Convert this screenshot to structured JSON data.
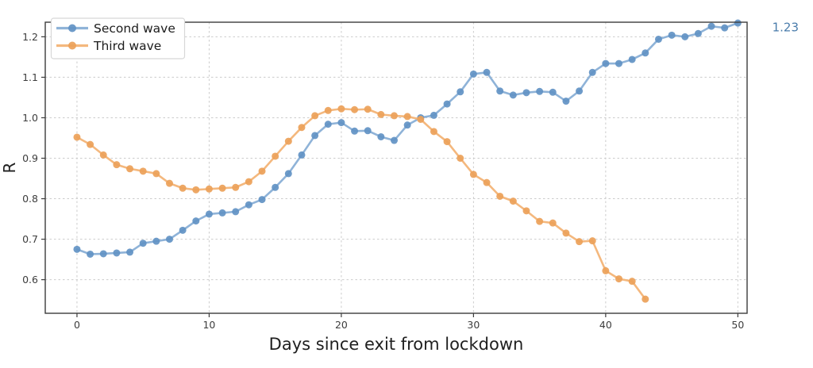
{
  "chart_data": {
    "type": "line",
    "title": "",
    "xlabel": "Days since exit from lockdown",
    "ylabel": "R",
    "grid": true,
    "grid_color": "#cccccc",
    "spine_color": "#3c3c3c",
    "tick_label_color": "#3d3d3d",
    "axis_label_color": "#1f1f1f",
    "legend_position": "upper-left",
    "xlim": [
      -2.4,
      50.7
    ],
    "ylim": [
      0.517,
      1.236
    ],
    "x_ticks": [
      0,
      10,
      20,
      30,
      40,
      50
    ],
    "x_tick_labels": [
      "0",
      "10",
      "20",
      "30",
      "40",
      "50"
    ],
    "y_ticks": [
      0.6,
      0.7,
      0.8,
      0.9,
      1.0,
      1.1,
      1.2
    ],
    "y_tick_labels": [
      "0.6",
      "0.7",
      "0.8",
      "0.9",
      "1.0",
      "1.1",
      "1.2"
    ],
    "annotation": {
      "text": "1.23",
      "x": 52.6,
      "y": 1.223,
      "color": "#4a7cab"
    },
    "series": [
      {
        "name": "Second wave",
        "line_color": "#8fb3d8",
        "marker_color": "#6293c4",
        "x": [
          0,
          1,
          2,
          3,
          4,
          5,
          6,
          7,
          8,
          9,
          10,
          11,
          12,
          13,
          14,
          15,
          16,
          17,
          18,
          19,
          20,
          21,
          22,
          23,
          24,
          25,
          26,
          27,
          28,
          29,
          30,
          31,
          32,
          33,
          34,
          35,
          36,
          37,
          38,
          39,
          40,
          41,
          42,
          43,
          44,
          45,
          46,
          47,
          48,
          49,
          50
        ],
        "values": [
          0.675,
          0.663,
          0.664,
          0.666,
          0.668,
          0.69,
          0.695,
          0.7,
          0.722,
          0.745,
          0.762,
          0.765,
          0.768,
          0.785,
          0.798,
          0.828,
          0.862,
          0.908,
          0.956,
          0.984,
          0.988,
          0.967,
          0.968,
          0.953,
          0.944,
          0.982,
          1.0,
          1.006,
          1.034,
          1.064,
          1.108,
          1.112,
          1.066,
          1.056,
          1.062,
          1.065,
          1.063,
          1.041,
          1.066,
          1.112,
          1.134,
          1.134,
          1.144,
          1.16,
          1.194,
          1.204,
          1.2,
          1.208,
          1.226,
          1.222,
          1.234
        ]
      },
      {
        "name": "Third wave",
        "line_color": "#f4b87e",
        "marker_color": "#eca159",
        "x": [
          0,
          1,
          2,
          3,
          4,
          5,
          6,
          7,
          8,
          9,
          10,
          11,
          12,
          13,
          14,
          15,
          16,
          17,
          18,
          19,
          20,
          21,
          22,
          23,
          24,
          25,
          26,
          27,
          28,
          29,
          30,
          31,
          32,
          33,
          34,
          35,
          36,
          37,
          38,
          39,
          40,
          41,
          42,
          43
        ],
        "values": [
          0.952,
          0.934,
          0.908,
          0.884,
          0.874,
          0.868,
          0.862,
          0.838,
          0.826,
          0.822,
          0.824,
          0.826,
          0.828,
          0.842,
          0.868,
          0.905,
          0.942,
          0.976,
          1.005,
          1.018,
          1.022,
          1.02,
          1.021,
          1.008,
          1.005,
          1.003,
          0.996,
          0.966,
          0.941,
          0.9,
          0.86,
          0.84,
          0.806,
          0.794,
          0.77,
          0.744,
          0.74,
          0.715,
          0.694,
          0.696,
          0.622,
          0.602,
          0.596,
          0.552
        ]
      }
    ]
  }
}
